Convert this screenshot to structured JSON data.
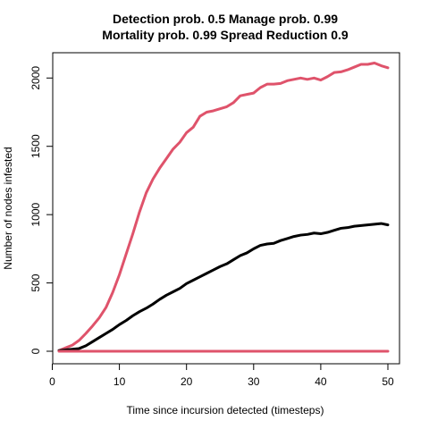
{
  "chart_data": {
    "type": "line",
    "title_line1": "Detection prob. 0.5 Manage prob. 0.99",
    "title_line2": "Mortality prob. 0.99 Spread Reduction 0.9",
    "xlabel": "Time since incursion detected (timesteps)",
    "ylabel": "Number of nodes infested",
    "xlim": [
      1,
      50
    ],
    "ylim": [
      0,
      2100
    ],
    "xticks": [
      0,
      10,
      20,
      30,
      40,
      50
    ],
    "yticks": [
      0,
      500,
      1000,
      1500,
      2000
    ],
    "grid": false,
    "x": [
      1,
      2,
      3,
      4,
      5,
      6,
      7,
      8,
      9,
      10,
      11,
      12,
      13,
      14,
      15,
      16,
      17,
      18,
      19,
      20,
      21,
      22,
      23,
      24,
      25,
      26,
      27,
      28,
      29,
      30,
      31,
      32,
      33,
      34,
      35,
      36,
      37,
      38,
      39,
      40,
      41,
      42,
      43,
      44,
      45,
      46,
      47,
      48,
      49,
      50
    ],
    "series": [
      {
        "color": "#DF536B",
        "values": [
          5,
          25,
          45,
          80,
          130,
          185,
          245,
          320,
          430,
          560,
          710,
          860,
          1020,
          1160,
          1260,
          1340,
          1410,
          1480,
          1530,
          1600,
          1640,
          1720,
          1750,
          1760,
          1775,
          1790,
          1820,
          1870,
          1880,
          1890,
          1930,
          1955,
          1955,
          1960,
          1980,
          1990,
          2000,
          1990,
          2000,
          1985,
          2010,
          2040,
          2045,
          2060,
          2080,
          2100,
          2100,
          2110,
          2090,
          2075
        ]
      },
      {
        "color": "#000000",
        "values": [
          5,
          10,
          15,
          20,
          40,
          70,
          100,
          130,
          160,
          195,
          225,
          260,
          290,
          315,
          345,
          380,
          410,
          435,
          460,
          495,
          520,
          545,
          570,
          595,
          620,
          640,
          670,
          700,
          720,
          750,
          775,
          785,
          790,
          810,
          825,
          840,
          850,
          855,
          865,
          860,
          870,
          885,
          900,
          905,
          915,
          920,
          925,
          930,
          935,
          925
        ]
      },
      {
        "color": "#DF536B",
        "values": [
          0,
          0,
          0,
          0,
          0,
          0,
          0,
          0,
          0,
          0,
          0,
          0,
          0,
          0,
          0,
          0,
          0,
          0,
          0,
          0,
          0,
          0,
          0,
          0,
          0,
          0,
          0,
          0,
          0,
          0,
          0,
          0,
          0,
          0,
          0,
          0,
          0,
          0,
          0,
          0,
          0,
          0,
          0,
          0,
          0,
          0,
          0,
          0,
          0,
          0
        ]
      }
    ]
  }
}
